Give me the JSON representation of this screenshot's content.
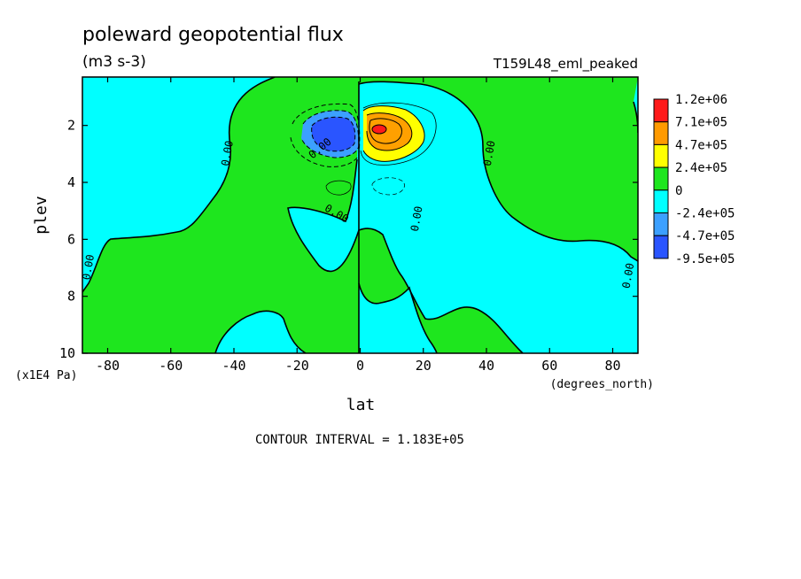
{
  "chart_data": {
    "type": "heatmap",
    "title": "poleward geopotential flux",
    "units": "(m3 s-3)",
    "run_label": "T159L48_eml_peaked",
    "xlabel": "lat",
    "x_units": "(degrees_north)",
    "ylabel": "plev",
    "y_units": "(x1E4 Pa)",
    "xlim": [
      -88,
      88
    ],
    "ylim": [
      10,
      0.3
    ],
    "x_ticks": [
      -80,
      -60,
      -40,
      -20,
      0,
      20,
      40,
      60,
      80
    ],
    "y_ticks": [
      2,
      4,
      6,
      8,
      10
    ],
    "contour_interval_text": "CONTOUR INTERVAL = 1.183E+05",
    "contour_label": "0.00",
    "legend_levels": [
      "1.2e+06",
      "7.1e+05",
      "4.7e+05",
      "2.4e+05",
      "0",
      "-2.4e+05",
      "-4.7e+05",
      "-9.5e+05"
    ],
    "legend_colors": [
      "#ff1a1a",
      "#ff9a00",
      "#ffff00",
      "#1ee61e",
      "#00ffff",
      "#3ca0ff",
      "#2a55ff",
      "#2a55ff"
    ],
    "field_colors": {
      "positive_small": "#1ee61e",
      "negative_small": "#00ffff",
      "pos_2": "#ffff00",
      "pos_3": "#ffa000",
      "pos_4": "#ff1a1a",
      "neg_2": "#3ca0ff",
      "neg_3": "#2a55ff"
    },
    "extrema": [
      {
        "lat": 6,
        "plev": 2.0,
        "value": 1200000.0
      },
      {
        "lat": -7,
        "plev": 2.1,
        "value": -950000.0
      }
    ]
  }
}
